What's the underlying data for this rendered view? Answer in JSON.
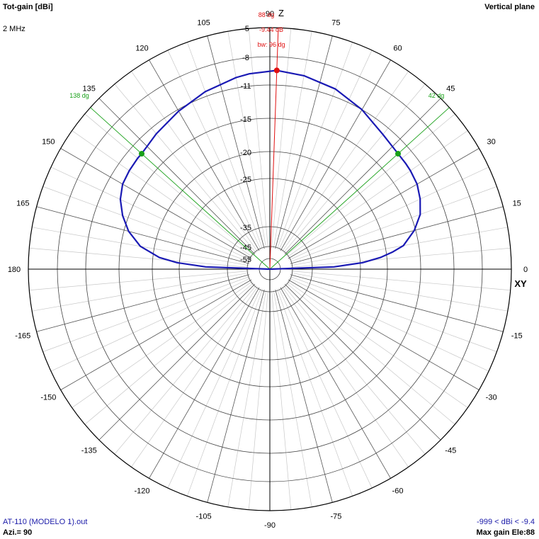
{
  "header": {
    "quantity": "Tot-gain [dBi]",
    "frequency": "2 MHz",
    "plane": "Vertical plane"
  },
  "footer": {
    "file": "AT-110 (MODELO 1).out",
    "azimuth": "Azi.= 90",
    "range": "-999 < dBi < -9.4",
    "max_gain": "Max gain Ele:88"
  },
  "colors": {
    "pattern": "#1a1ab4",
    "max_marker": "#e01010",
    "beamwidth": "#18a018",
    "grid": "#000000",
    "grid_minor": "#c8c8c8"
  },
  "chart_data": {
    "type": "polar",
    "plane": "vertical",
    "angle_unit": "deg",
    "angle_labels": [
      "0",
      "15",
      "30",
      "45",
      "60",
      "75",
      "90",
      "105",
      "120",
      "135",
      "150",
      "165",
      "180",
      "-165",
      "-150",
      "-135",
      "-120",
      "-105",
      "-90",
      "-75",
      "-60",
      "-45",
      "-30",
      "-15"
    ],
    "angle_label_values": [
      0,
      15,
      30,
      45,
      60,
      75,
      90,
      105,
      120,
      135,
      150,
      165,
      180,
      -165,
      -150,
      -135,
      -120,
      -105,
      -90,
      -75,
      -60,
      -45,
      -30,
      -15
    ],
    "radial_ticks": [
      "-5",
      "-8",
      "-11",
      "-15",
      "-20",
      "-25",
      "-35",
      "-45",
      "-55"
    ],
    "radial_tick_values": [
      -5,
      -8,
      -11,
      -15,
      -20,
      -25,
      -35,
      -45,
      -55
    ],
    "axis_labels": {
      "zenith": "Z",
      "horizontal": "XY"
    },
    "series": [
      {
        "elevation_deg": [
          0,
          2,
          4,
          6,
          8,
          10,
          15,
          20,
          25,
          30,
          35,
          38,
          42,
          50,
          60,
          70,
          80,
          88,
          96,
          100,
          110,
          120,
          130,
          138,
          140,
          145,
          150,
          155,
          160,
          165,
          170,
          174,
          176,
          178,
          180
        ],
        "gain_dbi": [
          -999,
          -30.5,
          -24.6,
          -21.2,
          -19.0,
          -17.3,
          -15.2,
          -13.9,
          -13.2,
          -12.7,
          -12.5,
          -12.45,
          -12.4,
          -12.0,
          -11.0,
          -10.2,
          -9.7,
          -9.44,
          -9.7,
          -9.9,
          -10.5,
          -11.2,
          -11.9,
          -12.4,
          -12.4,
          -12.5,
          -12.7,
          -13.3,
          -14.3,
          -15.7,
          -17.9,
          -21.2,
          -24.6,
          -30.5,
          -999
        ]
      }
    ],
    "max_gain": {
      "elevation_deg": 88,
      "gain_dbi": -9.44
    },
    "beamwidth": {
      "start_deg": 42,
      "end_deg": 138,
      "width_deg": 96
    },
    "annotations": {
      "max_angle": "88 dg",
      "max_gain": "-9.44 dB",
      "beamwidth": "bw: 96 dg",
      "bw_left": "138 dg",
      "bw_right": "42 dg"
    }
  }
}
